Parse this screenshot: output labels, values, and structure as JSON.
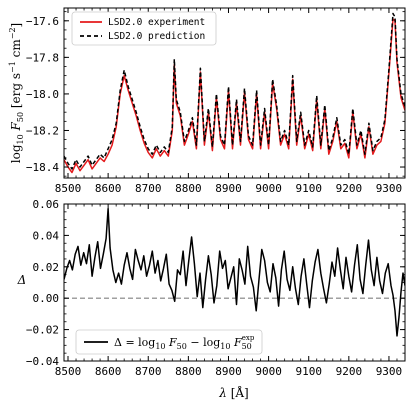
{
  "chart_data": [
    {
      "type": "line",
      "xlim": [
        8490,
        9340
      ],
      "ylim": [
        -18.46,
        -17.53
      ],
      "xticks": [
        8500,
        8600,
        8700,
        8800,
        8900,
        9000,
        9100,
        9200,
        9300
      ],
      "yticks": [
        -18.4,
        -18.2,
        -18.0,
        -17.8,
        -17.6
      ],
      "ytick_labels": [
        "−18.4",
        "−18.2",
        "−18.0",
        "−17.8",
        "−17.6"
      ],
      "ylabel": "log10 F50 [erg s⁻¹ cm⁻²]",
      "xlabel": "",
      "legend": {
        "position": "top-left"
      },
      "series": [
        {
          "name": "LSD2.0 experiment",
          "color": "#e41a1c",
          "style": "solid",
          "x": [
            8490,
            8500,
            8510,
            8520,
            8530,
            8540,
            8550,
            8560,
            8570,
            8580,
            8590,
            8600,
            8610,
            8620,
            8630,
            8640,
            8650,
            8660,
            8670,
            8680,
            8690,
            8700,
            8710,
            8720,
            8730,
            8740,
            8750,
            8760,
            8765,
            8770,
            8780,
            8790,
            8800,
            8810,
            8820,
            8830,
            8840,
            8850,
            8860,
            8870,
            8880,
            8890,
            8900,
            8910,
            8920,
            8930,
            8940,
            8950,
            8960,
            8970,
            8980,
            8990,
            9000,
            9010,
            9020,
            9030,
            9040,
            9050,
            9060,
            9070,
            9080,
            9090,
            9100,
            9110,
            9120,
            9130,
            9140,
            9150,
            9160,
            9170,
            9180,
            9190,
            9200,
            9210,
            9220,
            9230,
            9240,
            9250,
            9260,
            9270,
            9280,
            9290,
            9300,
            9310,
            9315,
            9320,
            9330,
            9340
          ],
          "y": [
            -18.36,
            -18.4,
            -18.43,
            -18.38,
            -18.42,
            -18.39,
            -18.36,
            -18.41,
            -18.38,
            -18.35,
            -18.37,
            -18.33,
            -18.28,
            -18.18,
            -18.0,
            -17.9,
            -17.98,
            -18.05,
            -18.12,
            -18.2,
            -18.27,
            -18.32,
            -18.35,
            -18.3,
            -18.34,
            -18.31,
            -18.34,
            -18.2,
            -17.84,
            -18.05,
            -18.12,
            -18.28,
            -18.22,
            -18.15,
            -18.3,
            -17.88,
            -18.28,
            -18.1,
            -18.31,
            -18.02,
            -18.25,
            -18.3,
            -17.98,
            -18.3,
            -18.05,
            -18.28,
            -17.99,
            -18.25,
            -18.3,
            -18.0,
            -18.3,
            -18.1,
            -18.3,
            -17.94,
            -18.08,
            -18.28,
            -18.22,
            -18.3,
            -17.92,
            -18.28,
            -18.12,
            -18.3,
            -18.22,
            -18.31,
            -18.03,
            -18.3,
            -18.08,
            -18.33,
            -18.26,
            -18.15,
            -18.3,
            -18.27,
            -18.35,
            -18.1,
            -18.3,
            -18.22,
            -18.35,
            -18.18,
            -18.33,
            -18.28,
            -18.26,
            -18.16,
            -17.88,
            -17.59,
            -17.6,
            -17.83,
            -18.02,
            -18.09
          ]
        },
        {
          "name": "LSD2.0 prediction",
          "color": "#000000",
          "style": "dashed",
          "x": [
            8490,
            8500,
            8510,
            8520,
            8530,
            8540,
            8550,
            8560,
            8570,
            8580,
            8590,
            8600,
            8610,
            8620,
            8630,
            8640,
            8650,
            8660,
            8670,
            8680,
            8690,
            8700,
            8710,
            8720,
            8730,
            8740,
            8750,
            8760,
            8765,
            8770,
            8780,
            8790,
            8800,
            8810,
            8820,
            8830,
            8840,
            8850,
            8860,
            8870,
            8880,
            8890,
            8900,
            8910,
            8920,
            8930,
            8940,
            8950,
            8960,
            8970,
            8980,
            8990,
            9000,
            9010,
            9020,
            9030,
            9040,
            9050,
            9060,
            9070,
            9080,
            9090,
            9100,
            9110,
            9120,
            9130,
            9140,
            9150,
            9160,
            9170,
            9180,
            9190,
            9200,
            9210,
            9220,
            9230,
            9240,
            9250,
            9260,
            9270,
            9280,
            9290,
            9300,
            9310,
            9315,
            9320,
            9330,
            9340
          ],
          "y": [
            -18.34,
            -18.38,
            -18.41,
            -18.36,
            -18.4,
            -18.37,
            -18.34,
            -18.39,
            -18.36,
            -18.33,
            -18.35,
            -18.3,
            -18.25,
            -18.16,
            -17.98,
            -17.87,
            -17.96,
            -18.03,
            -18.1,
            -18.18,
            -18.25,
            -18.3,
            -18.33,
            -18.28,
            -18.32,
            -18.29,
            -18.32,
            -18.18,
            -17.81,
            -18.03,
            -18.1,
            -18.26,
            -18.2,
            -18.13,
            -18.28,
            -17.86,
            -18.26,
            -18.08,
            -18.29,
            -18.0,
            -18.23,
            -18.28,
            -17.96,
            -18.28,
            -18.03,
            -18.26,
            -17.97,
            -18.23,
            -18.28,
            -17.98,
            -18.28,
            -18.08,
            -18.28,
            -17.92,
            -18.06,
            -18.26,
            -18.2,
            -18.28,
            -17.9,
            -18.26,
            -18.1,
            -18.28,
            -18.2,
            -18.29,
            -18.01,
            -18.28,
            -18.06,
            -18.31,
            -18.24,
            -18.13,
            -18.28,
            -18.25,
            -18.33,
            -18.08,
            -18.28,
            -18.2,
            -18.33,
            -18.16,
            -18.31,
            -18.26,
            -18.24,
            -18.14,
            -17.86,
            -17.56,
            -17.58,
            -17.81,
            -18.0,
            -18.07
          ]
        }
      ]
    },
    {
      "type": "line",
      "xlim": [
        8490,
        9340
      ],
      "ylim": [
        -0.04,
        0.06
      ],
      "xticks": [
        8500,
        8600,
        8700,
        8800,
        8900,
        9000,
        9100,
        9200,
        9300
      ],
      "yticks": [
        -0.04,
        -0.02,
        0.0,
        0.02,
        0.04,
        0.06
      ],
      "ytick_labels": [
        "−0.04",
        "−0.02",
        "0.00",
        "0.02",
        "0.04",
        "0.06"
      ],
      "xlabel": "λ [Å]",
      "ylabel": "Δ",
      "reference_line": {
        "y": 0.0,
        "color": "#808080",
        "style": "dashed"
      },
      "legend": {
        "position": "bottom-left"
      },
      "series": [
        {
          "name": "Δ = log10 F50 − log10 F50exp",
          "color": "#000000",
          "style": "solid",
          "x": [
            8490,
            8497,
            8504,
            8511,
            8518,
            8525,
            8532,
            8539,
            8546,
            8553,
            8560,
            8567,
            8574,
            8581,
            8588,
            8595,
            8600,
            8605,
            8612,
            8619,
            8626,
            8633,
            8640,
            8647,
            8654,
            8661,
            8668,
            8675,
            8682,
            8689,
            8696,
            8703,
            8710,
            8717,
            8724,
            8731,
            8738,
            8745,
            8752,
            8759,
            8766,
            8773,
            8780,
            8787,
            8794,
            8801,
            8808,
            8815,
            8822,
            8829,
            8836,
            8843,
            8850,
            8857,
            8864,
            8871,
            8878,
            8885,
            8892,
            8899,
            8906,
            8913,
            8920,
            8927,
            8934,
            8941,
            8948,
            8955,
            8962,
            8969,
            8976,
            8983,
            8990,
            8997,
            9004,
            9011,
            9018,
            9025,
            9032,
            9039,
            9046,
            9053,
            9060,
            9067,
            9074,
            9081,
            9088,
            9095,
            9102,
            9109,
            9116,
            9123,
            9130,
            9137,
            9144,
            9151,
            9158,
            9165,
            9172,
            9179,
            9186,
            9193,
            9200,
            9207,
            9214,
            9221,
            9228,
            9235,
            9242,
            9249,
            9256,
            9263,
            9270,
            9277,
            9284,
            9291,
            9298,
            9305,
            9310,
            9315,
            9320,
            9325,
            9330,
            9335,
            9340
          ],
          "y": [
            0.012,
            0.019,
            0.024,
            0.018,
            0.028,
            0.033,
            0.021,
            0.029,
            0.022,
            0.034,
            0.014,
            0.026,
            0.036,
            0.019,
            0.028,
            0.038,
            0.057,
            0.032,
            0.018,
            0.01,
            0.016,
            0.009,
            0.021,
            0.029,
            0.019,
            0.012,
            0.031,
            0.024,
            0.018,
            0.027,
            0.014,
            0.021,
            0.03,
            0.016,
            0.024,
            0.011,
            0.019,
            0.028,
            0.009,
            0.005,
            -0.002,
            0.018,
            0.015,
            0.03,
            0.008,
            0.024,
            0.039,
            0.022,
            0.001,
            0.016,
            -0.006,
            0.012,
            0.027,
            0.015,
            -0.003,
            0.008,
            0.03,
            0.019,
            0.024,
            0.006,
            0.013,
            0.02,
            -0.004,
            0.025,
            0.018,
            0.009,
            0.033,
            0.014,
            0.007,
            -0.008,
            0.012,
            0.031,
            0.024,
            0.01,
            0.004,
            0.022,
            0.013,
            -0.005,
            0.018,
            0.03,
            0.012,
            0.005,
            0.02,
            0.006,
            -0.004,
            0.014,
            0.025,
            0.009,
            -0.006,
            0.011,
            0.023,
            0.031,
            0.016,
            0.006,
            -0.003,
            0.009,
            0.023,
            0.014,
            0.032,
            0.018,
            0.006,
            0.026,
            0.014,
            0.004,
            0.021,
            0.034,
            0.012,
            0.003,
            0.021,
            0.037,
            0.018,
            0.008,
            0.026,
            0.011,
            0.003,
            0.016,
            0.022,
            0.008,
            0.002,
            -0.008,
            -0.024,
            -0.012,
            0.004,
            0.016,
            0.008
          ]
        }
      ]
    }
  ]
}
